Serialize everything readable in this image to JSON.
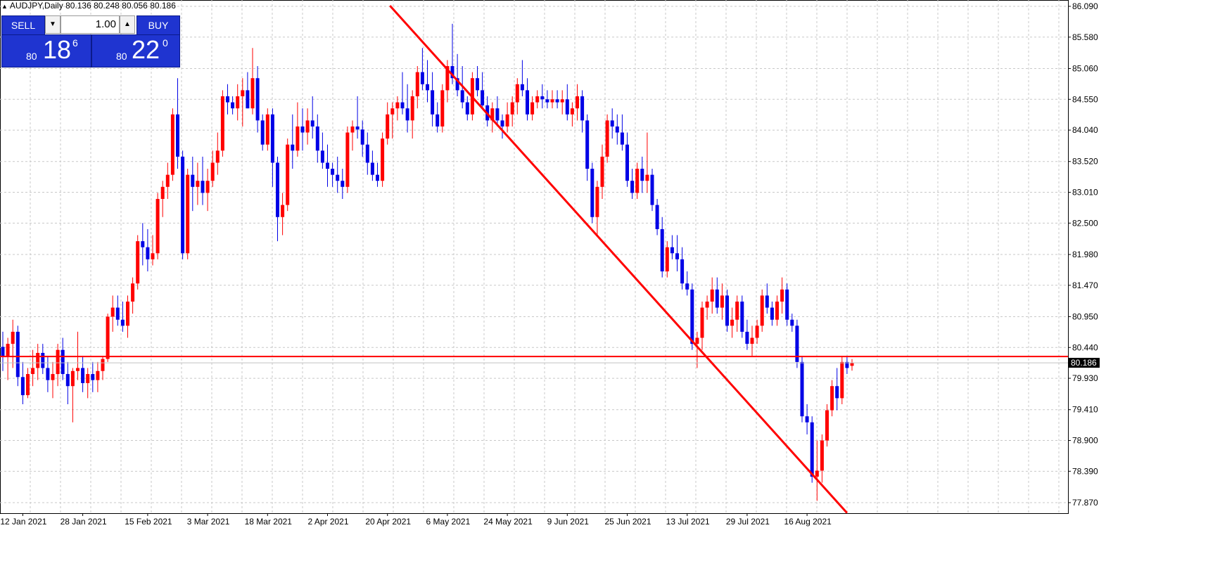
{
  "header": {
    "symbol": "AUDJPY,Daily",
    "ohlc": "80.136 80.248 80.056 80.186"
  },
  "one_click_trading": {
    "sell_label": "SELL",
    "buy_label": "BUY",
    "lot_value": "1.00",
    "sell_price": {
      "prefix": "80",
      "big": "18",
      "sup": "6"
    },
    "buy_price": {
      "prefix": "80",
      "big": "22",
      "sup": "0"
    }
  },
  "colors": {
    "bull": "#ff0000",
    "bear": "#0000e6",
    "grid": "#c8c8c8",
    "trendline": "#ff0000",
    "resistance": "#ff0000",
    "bid_line": "#c0c0c0"
  },
  "chart_data": {
    "type": "candlestick",
    "price_axis": [
      "86.090",
      "85.580",
      "85.060",
      "84.550",
      "84.040",
      "83.520",
      "83.010",
      "82.500",
      "81.980",
      "81.470",
      "80.950",
      "80.440",
      "79.930",
      "79.410",
      "78.900",
      "78.390",
      "77.870"
    ],
    "ylim": [
      77.87,
      86.09
    ],
    "date_labels": [
      "12 Jan 2021",
      "28 Jan 2021",
      "15 Feb 2021",
      "3 Mar 2021",
      "18 Mar 2021",
      "2 Apr 2021",
      "20 Apr 2021",
      "6 May 2021",
      "24 May 2021",
      "9 Jun 2021",
      "25 Jun 2021",
      "13 Jul 2021",
      "29 Jul 2021",
      "16 Aug 2021"
    ],
    "current_price_label": "80.186",
    "current_price": 80.186,
    "horizontal_level": 80.29,
    "trendline": {
      "start_index": 77.5,
      "start_price": 86.1,
      "end_index": 169,
      "end_price": 77.7
    },
    "bars": [
      [
        80.45,
        80.7,
        80.05,
        80.3
      ],
      [
        80.3,
        80.6,
        79.9,
        80.5
      ],
      [
        80.5,
        80.9,
        80.1,
        80.7
      ],
      [
        80.7,
        80.8,
        79.8,
        79.95
      ],
      [
        79.95,
        80.2,
        79.5,
        79.65
      ],
      [
        79.65,
        80.1,
        79.6,
        80.0
      ],
      [
        80.0,
        80.4,
        79.8,
        80.1
      ],
      [
        80.1,
        80.5,
        79.9,
        80.35
      ],
      [
        80.35,
        80.5,
        80.0,
        80.1
      ],
      [
        80.1,
        80.3,
        79.7,
        79.9
      ],
      [
        79.9,
        80.2,
        79.6,
        80.0
      ],
      [
        80.0,
        80.5,
        79.8,
        80.4
      ],
      [
        80.4,
        80.6,
        79.9,
        80.0
      ],
      [
        80.0,
        80.2,
        79.5,
        79.8
      ],
      [
        79.8,
        80.1,
        79.2,
        80.05
      ],
      [
        80.05,
        80.7,
        79.9,
        80.1
      ],
      [
        80.1,
        80.3,
        79.7,
        79.85
      ],
      [
        79.85,
        80.1,
        79.6,
        80.0
      ],
      [
        80.0,
        80.2,
        79.7,
        79.9
      ],
      [
        79.9,
        80.2,
        79.7,
        80.05
      ],
      [
        80.05,
        80.3,
        79.9,
        80.25
      ],
      [
        80.25,
        81.0,
        80.2,
        80.95
      ],
      [
        80.95,
        81.3,
        80.7,
        81.1
      ],
      [
        81.1,
        81.3,
        80.8,
        80.9
      ],
      [
        80.9,
        81.2,
        80.7,
        80.8
      ],
      [
        80.8,
        81.3,
        80.6,
        81.2
      ],
      [
        81.2,
        81.6,
        81.0,
        81.5
      ],
      [
        81.5,
        82.3,
        81.4,
        82.2
      ],
      [
        82.2,
        82.5,
        81.8,
        82.1
      ],
      [
        82.1,
        82.4,
        81.7,
        81.9
      ],
      [
        81.9,
        82.3,
        81.8,
        82.0
      ],
      [
        82.0,
        83.0,
        81.9,
        82.9
      ],
      [
        82.9,
        83.2,
        82.6,
        83.1
      ],
      [
        83.1,
        83.5,
        82.9,
        83.3
      ],
      [
        83.3,
        84.4,
        83.2,
        84.3
      ],
      [
        84.3,
        84.9,
        83.4,
        83.6
      ],
      [
        83.6,
        83.7,
        81.9,
        82.0
      ],
      [
        82.0,
        83.4,
        81.9,
        83.3
      ],
      [
        83.3,
        83.6,
        82.7,
        83.1
      ],
      [
        83.1,
        83.5,
        82.8,
        83.2
      ],
      [
        83.2,
        83.6,
        82.8,
        83.0
      ],
      [
        83.0,
        83.4,
        82.7,
        83.2
      ],
      [
        83.2,
        83.7,
        83.1,
        83.5
      ],
      [
        83.5,
        84.0,
        83.3,
        83.7
      ],
      [
        83.7,
        84.7,
        83.6,
        84.6
      ],
      [
        84.6,
        84.8,
        84.3,
        84.5
      ],
      [
        84.5,
        84.6,
        84.3,
        84.4
      ],
      [
        84.4,
        84.8,
        84.2,
        84.6
      ],
      [
        84.6,
        84.9,
        84.1,
        84.7
      ],
      [
        84.7,
        85.0,
        84.4,
        84.4
      ],
      [
        84.4,
        85.4,
        84.3,
        84.9
      ],
      [
        84.9,
        85.1,
        84.0,
        84.2
      ],
      [
        84.2,
        84.3,
        83.7,
        83.8
      ],
      [
        83.8,
        84.4,
        83.7,
        84.3
      ],
      [
        84.3,
        84.4,
        83.1,
        83.5
      ],
      [
        83.5,
        83.6,
        82.2,
        82.6
      ],
      [
        82.6,
        83.0,
        82.3,
        82.8
      ],
      [
        82.8,
        83.9,
        82.7,
        83.8
      ],
      [
        83.8,
        84.3,
        83.4,
        83.7
      ],
      [
        83.7,
        84.5,
        83.6,
        84.1
      ],
      [
        84.1,
        84.4,
        83.7,
        84.0
      ],
      [
        84.0,
        84.4,
        83.8,
        84.2
      ],
      [
        84.2,
        84.6,
        83.9,
        84.1
      ],
      [
        84.1,
        84.3,
        83.5,
        83.7
      ],
      [
        83.7,
        84.0,
        83.4,
        83.5
      ],
      [
        83.5,
        83.8,
        83.1,
        83.4
      ],
      [
        83.4,
        83.5,
        83.1,
        83.3
      ],
      [
        83.3,
        83.6,
        83.0,
        83.2
      ],
      [
        83.2,
        83.4,
        82.9,
        83.1
      ],
      [
        83.1,
        84.1,
        83.0,
        84.0
      ],
      [
        84.0,
        84.2,
        83.7,
        84.1
      ],
      [
        84.1,
        84.6,
        83.9,
        84.05
      ],
      [
        84.05,
        84.2,
        83.6,
        83.8
      ],
      [
        83.8,
        84.0,
        83.3,
        83.5
      ],
      [
        83.5,
        83.7,
        83.2,
        83.3
      ],
      [
        83.3,
        83.5,
        83.1,
        83.2
      ],
      [
        83.2,
        84.0,
        83.1,
        83.9
      ],
      [
        83.9,
        84.5,
        83.8,
        84.3
      ],
      [
        84.3,
        84.5,
        83.9,
        84.4
      ],
      [
        84.4,
        84.6,
        84.2,
        84.5
      ],
      [
        84.5,
        85.0,
        84.3,
        84.4
      ],
      [
        84.4,
        84.8,
        84.0,
        84.2
      ],
      [
        84.2,
        84.7,
        83.9,
        84.6
      ],
      [
        84.6,
        85.1,
        84.4,
        85.0
      ],
      [
        85.0,
        85.4,
        84.7,
        84.8
      ],
      [
        84.8,
        85.2,
        84.5,
        84.7
      ],
      [
        84.7,
        85.0,
        84.1,
        84.3
      ],
      [
        84.3,
        84.5,
        84.0,
        84.1
      ],
      [
        84.1,
        84.8,
        84.0,
        84.7
      ],
      [
        84.7,
        85.2,
        84.5,
        85.1
      ],
      [
        85.1,
        85.8,
        84.8,
        84.9
      ],
      [
        84.9,
        85.3,
        84.6,
        84.7
      ],
      [
        84.7,
        85.1,
        84.4,
        84.5
      ],
      [
        84.5,
        84.6,
        84.2,
        84.3
      ],
      [
        84.3,
        85.0,
        84.2,
        84.9
      ],
      [
        84.9,
        85.1,
        84.6,
        84.7
      ],
      [
        84.7,
        85.0,
        84.4,
        84.45
      ],
      [
        84.45,
        84.6,
        84.1,
        84.2
      ],
      [
        84.2,
        84.5,
        84.0,
        84.4
      ],
      [
        84.4,
        84.6,
        84.1,
        84.2
      ],
      [
        84.2,
        84.3,
        83.9,
        84.1
      ],
      [
        84.1,
        84.5,
        84.0,
        84.3
      ],
      [
        84.3,
        84.6,
        84.1,
        84.5
      ],
      [
        84.5,
        84.9,
        84.3,
        84.8
      ],
      [
        84.8,
        85.2,
        84.6,
        84.7
      ],
      [
        84.7,
        84.9,
        84.2,
        84.3
      ],
      [
        84.3,
        84.6,
        84.2,
        84.5
      ],
      [
        84.5,
        84.7,
        84.4,
        84.6
      ],
      [
        84.6,
        84.8,
        84.4,
        84.55
      ],
      [
        84.55,
        84.7,
        84.4,
        84.5
      ],
      [
        84.5,
        84.7,
        84.4,
        84.55
      ],
      [
        84.55,
        84.7,
        84.4,
        84.5
      ],
      [
        84.5,
        84.7,
        84.3,
        84.55
      ],
      [
        84.55,
        84.8,
        84.2,
        84.3
      ],
      [
        84.3,
        84.5,
        84.1,
        84.4
      ],
      [
        84.4,
        84.8,
        84.2,
        84.6
      ],
      [
        84.6,
        84.7,
        84.0,
        84.2
      ],
      [
        84.2,
        84.3,
        83.2,
        83.4
      ],
      [
        83.4,
        83.5,
        82.5,
        82.6
      ],
      [
        82.6,
        83.2,
        82.3,
        83.1
      ],
      [
        83.1,
        83.8,
        82.9,
        83.6
      ],
      [
        83.6,
        84.3,
        83.5,
        84.2
      ],
      [
        84.2,
        84.4,
        83.9,
        84.1
      ],
      [
        84.1,
        84.3,
        83.8,
        84.0
      ],
      [
        84.0,
        84.3,
        83.7,
        83.8
      ],
      [
        83.8,
        84.0,
        83.1,
        83.2
      ],
      [
        83.2,
        83.4,
        82.9,
        83.0
      ],
      [
        83.0,
        83.5,
        82.9,
        83.4
      ],
      [
        83.4,
        83.6,
        83.0,
        83.2
      ],
      [
        83.2,
        84.0,
        83.0,
        83.3
      ],
      [
        83.3,
        83.4,
        82.7,
        82.8
      ],
      [
        82.8,
        82.9,
        82.3,
        82.4
      ],
      [
        82.4,
        82.6,
        81.6,
        81.7
      ],
      [
        81.7,
        82.2,
        81.6,
        82.1
      ],
      [
        82.1,
        82.3,
        81.9,
        82.0
      ],
      [
        82.0,
        82.3,
        81.7,
        81.9
      ],
      [
        81.9,
        82.1,
        81.4,
        81.5
      ],
      [
        81.5,
        81.7,
        81.3,
        81.4
      ],
      [
        81.4,
        81.5,
        80.4,
        80.5
      ],
      [
        80.5,
        80.7,
        80.1,
        80.6
      ],
      [
        80.6,
        81.2,
        80.4,
        81.1
      ],
      [
        81.1,
        81.3,
        80.9,
        81.2
      ],
      [
        81.2,
        81.6,
        81.0,
        81.4
      ],
      [
        81.4,
        81.6,
        81.0,
        81.1
      ],
      [
        81.1,
        81.5,
        80.9,
        81.3
      ],
      [
        81.3,
        81.4,
        80.7,
        80.8
      ],
      [
        80.8,
        81.1,
        80.6,
        80.9
      ],
      [
        80.9,
        81.3,
        80.7,
        81.2
      ],
      [
        81.2,
        81.3,
        80.6,
        80.7
      ],
      [
        80.7,
        80.9,
        80.4,
        80.5
      ],
      [
        80.5,
        80.8,
        80.3,
        80.6
      ],
      [
        80.6,
        80.9,
        80.5,
        80.8
      ],
      [
        80.8,
        81.4,
        80.7,
        81.3
      ],
      [
        81.3,
        81.5,
        81.0,
        81.1
      ],
      [
        81.1,
        81.2,
        80.8,
        80.9
      ],
      [
        80.9,
        81.3,
        80.8,
        81.2
      ],
      [
        81.2,
        81.6,
        81.0,
        81.4
      ],
      [
        81.4,
        81.5,
        80.8,
        80.9
      ],
      [
        80.9,
        81.0,
        80.7,
        80.8
      ],
      [
        80.8,
        80.9,
        80.1,
        80.2
      ],
      [
        80.2,
        80.3,
        79.2,
        79.3
      ],
      [
        79.3,
        79.5,
        79.0,
        79.2
      ],
      [
        79.2,
        79.3,
        78.2,
        78.3
      ],
      [
        78.3,
        78.9,
        77.9,
        78.4
      ],
      [
        78.4,
        79.0,
        78.2,
        78.9
      ],
      [
        78.9,
        79.5,
        78.8,
        79.4
      ],
      [
        79.4,
        79.9,
        79.3,
        79.8
      ],
      [
        79.8,
        80.1,
        79.4,
        79.6
      ],
      [
        79.6,
        80.3,
        79.5,
        80.2
      ],
      [
        80.2,
        80.3,
        80.0,
        80.1
      ],
      [
        80.136,
        80.248,
        80.056,
        80.186
      ]
    ]
  }
}
